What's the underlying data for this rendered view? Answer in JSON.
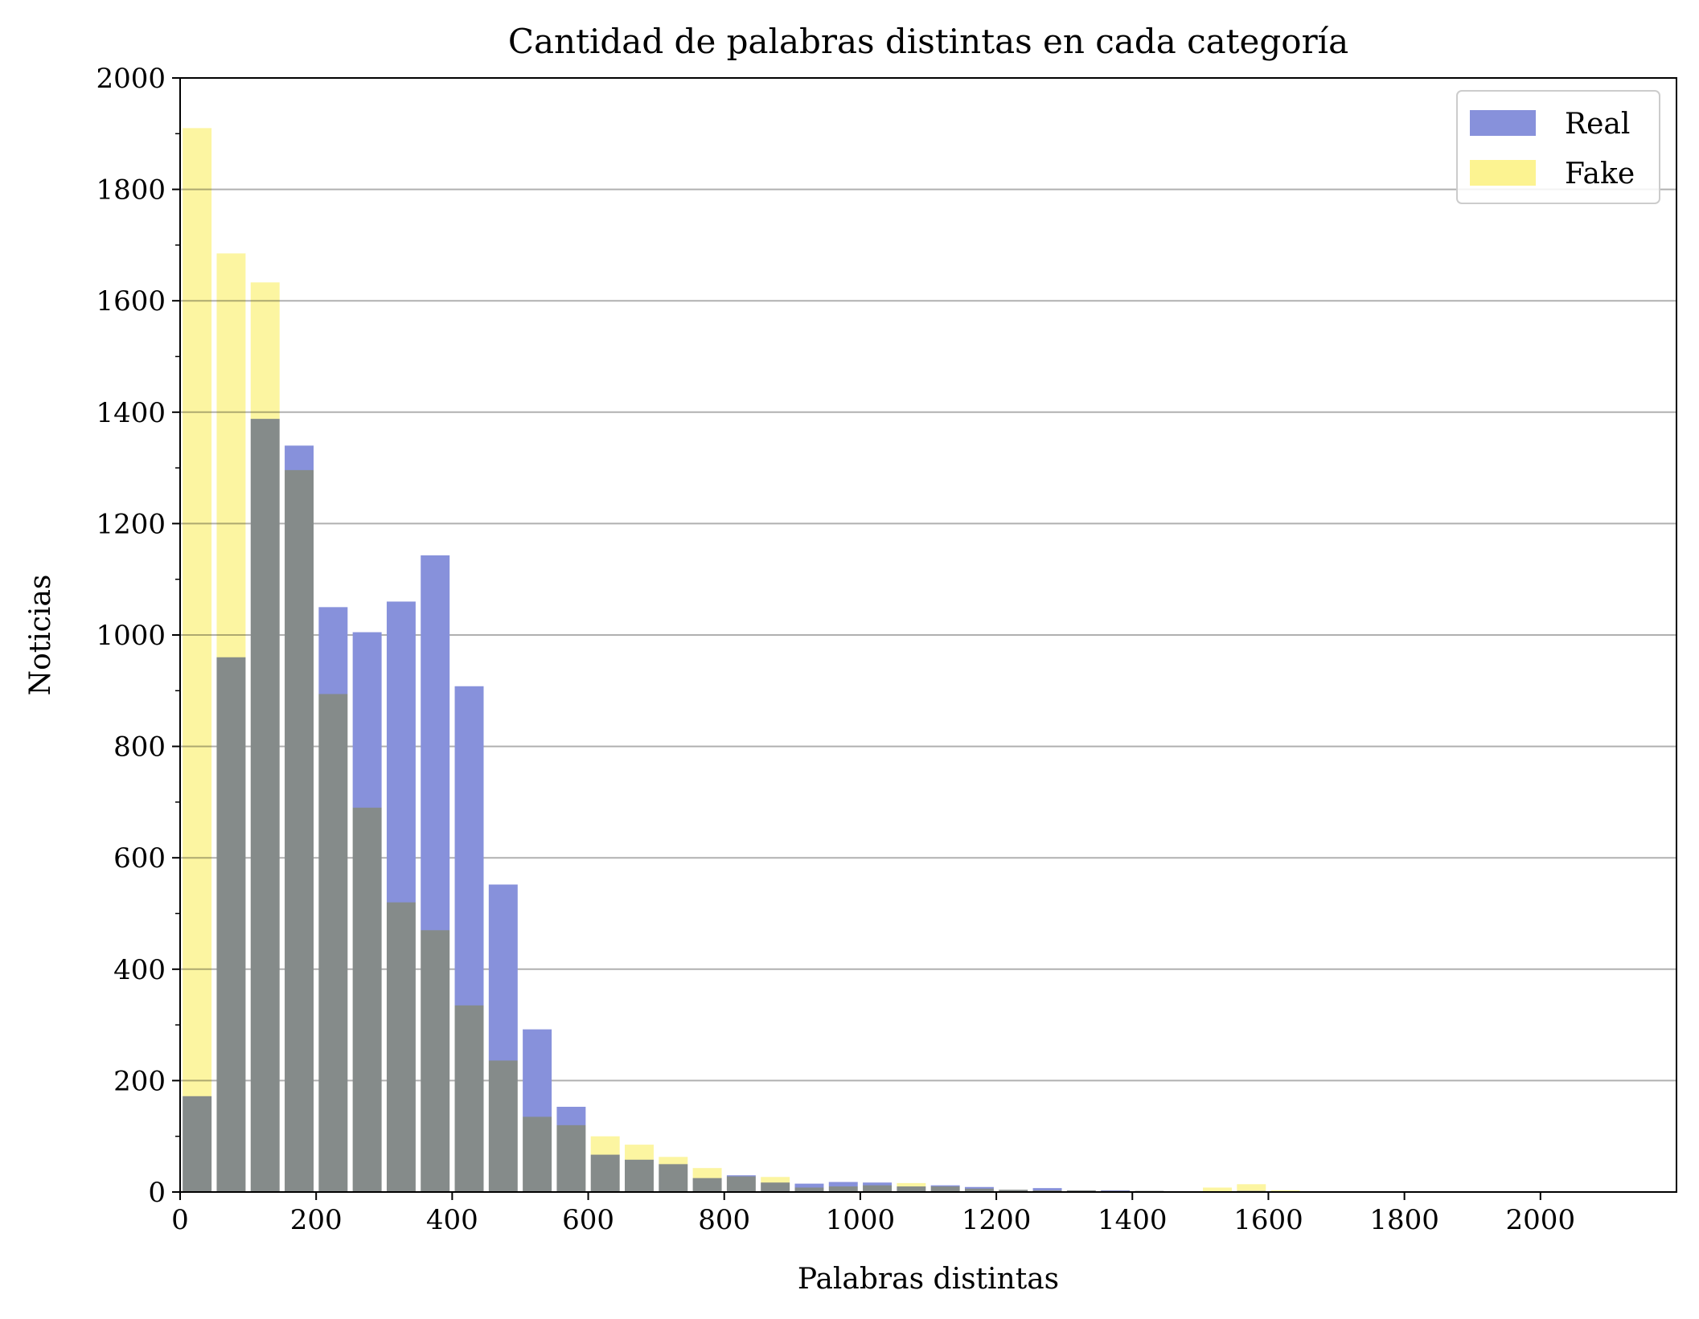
{
  "chart_data": {
    "type": "bar",
    "title": "Cantidad de palabras distintas en cada categoría",
    "xlabel": "Palabras distintas",
    "ylabel": "Noticias",
    "xlim": [
      0,
      2200
    ],
    "ylim": [
      0,
      2000
    ],
    "xticks": [
      0,
      200,
      400,
      600,
      800,
      1000,
      1200,
      1400,
      1600,
      1800,
      2000
    ],
    "yticks": [
      0,
      200,
      400,
      600,
      800,
      1000,
      1200,
      1400,
      1600,
      1800,
      2000
    ],
    "grid": "horizontal",
    "legend_position": "top-right",
    "bin_width": 50,
    "bin_centers": [
      25,
      75,
      125,
      175,
      225,
      275,
      325,
      375,
      425,
      475,
      525,
      575,
      625,
      675,
      725,
      775,
      825,
      875,
      925,
      975,
      1025,
      1075,
      1125,
      1175,
      1225,
      1275,
      1325,
      1375,
      1425,
      1475,
      1525,
      1575,
      1625
    ],
    "series": [
      {
        "name": "Real",
        "color": "#8791db",
        "values": [
          172,
          960,
          1388,
          1340,
          1050,
          1005,
          1060,
          1143,
          908,
          552,
          292,
          153,
          67,
          58,
          50,
          25,
          30,
          17,
          15,
          18,
          17,
          10,
          12,
          9,
          4,
          7,
          3,
          3,
          2,
          1,
          1,
          2,
          1
        ]
      },
      {
        "name": "Fake",
        "color": "#fcf391",
        "values": [
          1910,
          1685,
          1633,
          1296,
          894,
          690,
          520,
          470,
          335,
          236,
          135,
          120,
          100,
          85,
          63,
          43,
          28,
          27,
          8,
          10,
          12,
          16,
          10,
          6,
          4,
          3,
          3,
          2,
          2,
          1,
          8,
          14,
          3
        ]
      }
    ]
  }
}
